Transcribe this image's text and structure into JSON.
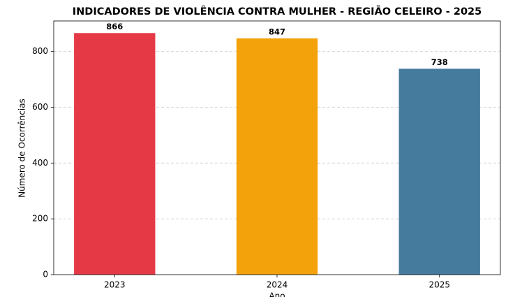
{
  "chart_data": {
    "type": "bar",
    "title": "INDICADORES DE VIOLÊNCIA CONTRA MULHER - REGIÃO CELEIRO - 2025",
    "x_label": "Ano",
    "y_label": "Número de Ocorrências",
    "categories": [
      "2023",
      "2024",
      "2025"
    ],
    "values": [
      866,
      847,
      738
    ],
    "colors": [
      "#e63946",
      "#f3a20c",
      "#457b9d"
    ],
    "ylim": [
      0,
      909.3
    ],
    "yticks": [
      0,
      200,
      400,
      600,
      800
    ],
    "grid": true
  }
}
